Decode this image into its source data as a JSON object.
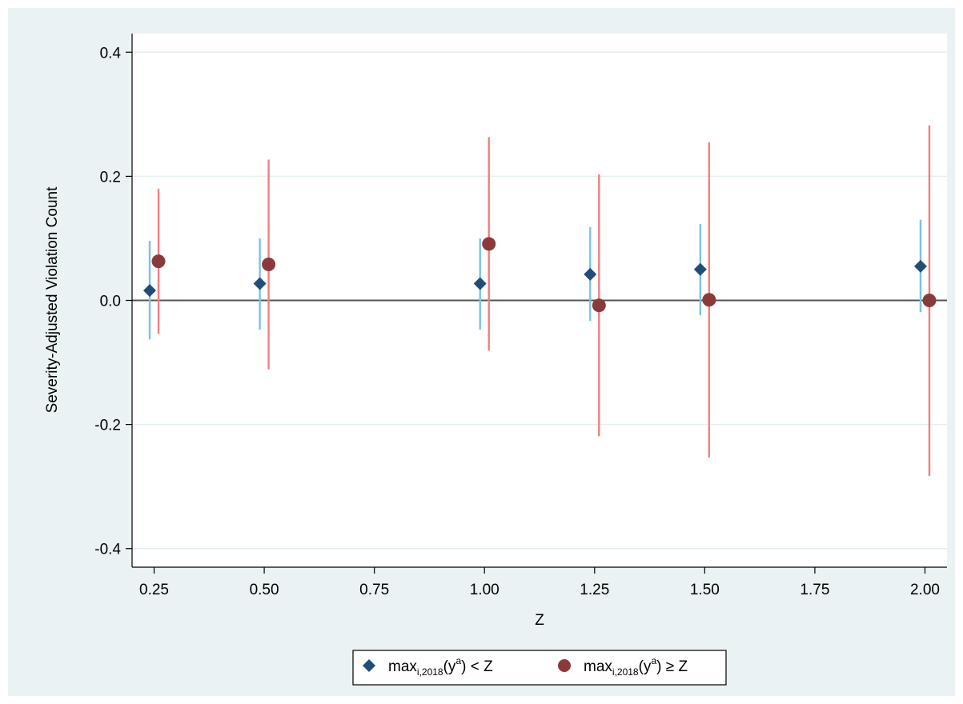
{
  "chart_data": {
    "type": "scatter",
    "title": "",
    "xlabel": "Z",
    "ylabel": "Severity-Adjusted Violation Count",
    "xlim": [
      0.2,
      2.05
    ],
    "ylim": [
      -0.43,
      0.43
    ],
    "x_ticks": [
      "0.25",
      "0.50",
      "0.75",
      "1.00",
      "1.25",
      "1.50",
      "1.75",
      "2.00"
    ],
    "y_ticks": [
      "-0.4",
      "-0.2",
      "0.0",
      "0.2",
      "0.4"
    ],
    "grid": true,
    "reference_line_y": 0,
    "legend_position": "bottom",
    "series": [
      {
        "name": "max_{i,2018}(y^a) < Z",
        "marker": "diamond",
        "color": "#1f4e79",
        "ci_color": "#7bc4dc",
        "x": [
          0.25,
          0.5,
          1.0,
          1.25,
          1.5,
          2.0
        ],
        "y": [
          0.016,
          0.027,
          0.027,
          0.042,
          0.05,
          0.055
        ],
        "ci_low": [
          -0.063,
          -0.047,
          -0.047,
          -0.033,
          -0.024,
          -0.019
        ],
        "ci_high": [
          0.096,
          0.1,
          0.1,
          0.118,
          0.123,
          0.13
        ]
      },
      {
        "name": "max_{i,2018}(y^a) ≥ Z",
        "marker": "circle",
        "color": "#8b3a3a",
        "ci_color": "#f08080",
        "x": [
          0.25,
          0.5,
          1.0,
          1.25,
          1.5,
          2.0
        ],
        "y": [
          0.063,
          0.058,
          0.091,
          -0.008,
          0.001,
          0.0
        ],
        "ci_low": [
          -0.054,
          -0.111,
          -0.081,
          -0.219,
          -0.253,
          -0.283
        ],
        "ci_high": [
          0.18,
          0.227,
          0.263,
          0.203,
          0.255,
          0.282
        ]
      }
    ]
  },
  "legend": {
    "s1_main": "max",
    "s1_sub": "i,2018",
    "s1_paren": "(y",
    "s1_sup": "a",
    "s1_tail": ") < Z",
    "s2_main": "max",
    "s2_sub": "i,2018",
    "s2_paren": "(y",
    "s2_sup": "a",
    "s2_tail": ") ≥ Z"
  }
}
